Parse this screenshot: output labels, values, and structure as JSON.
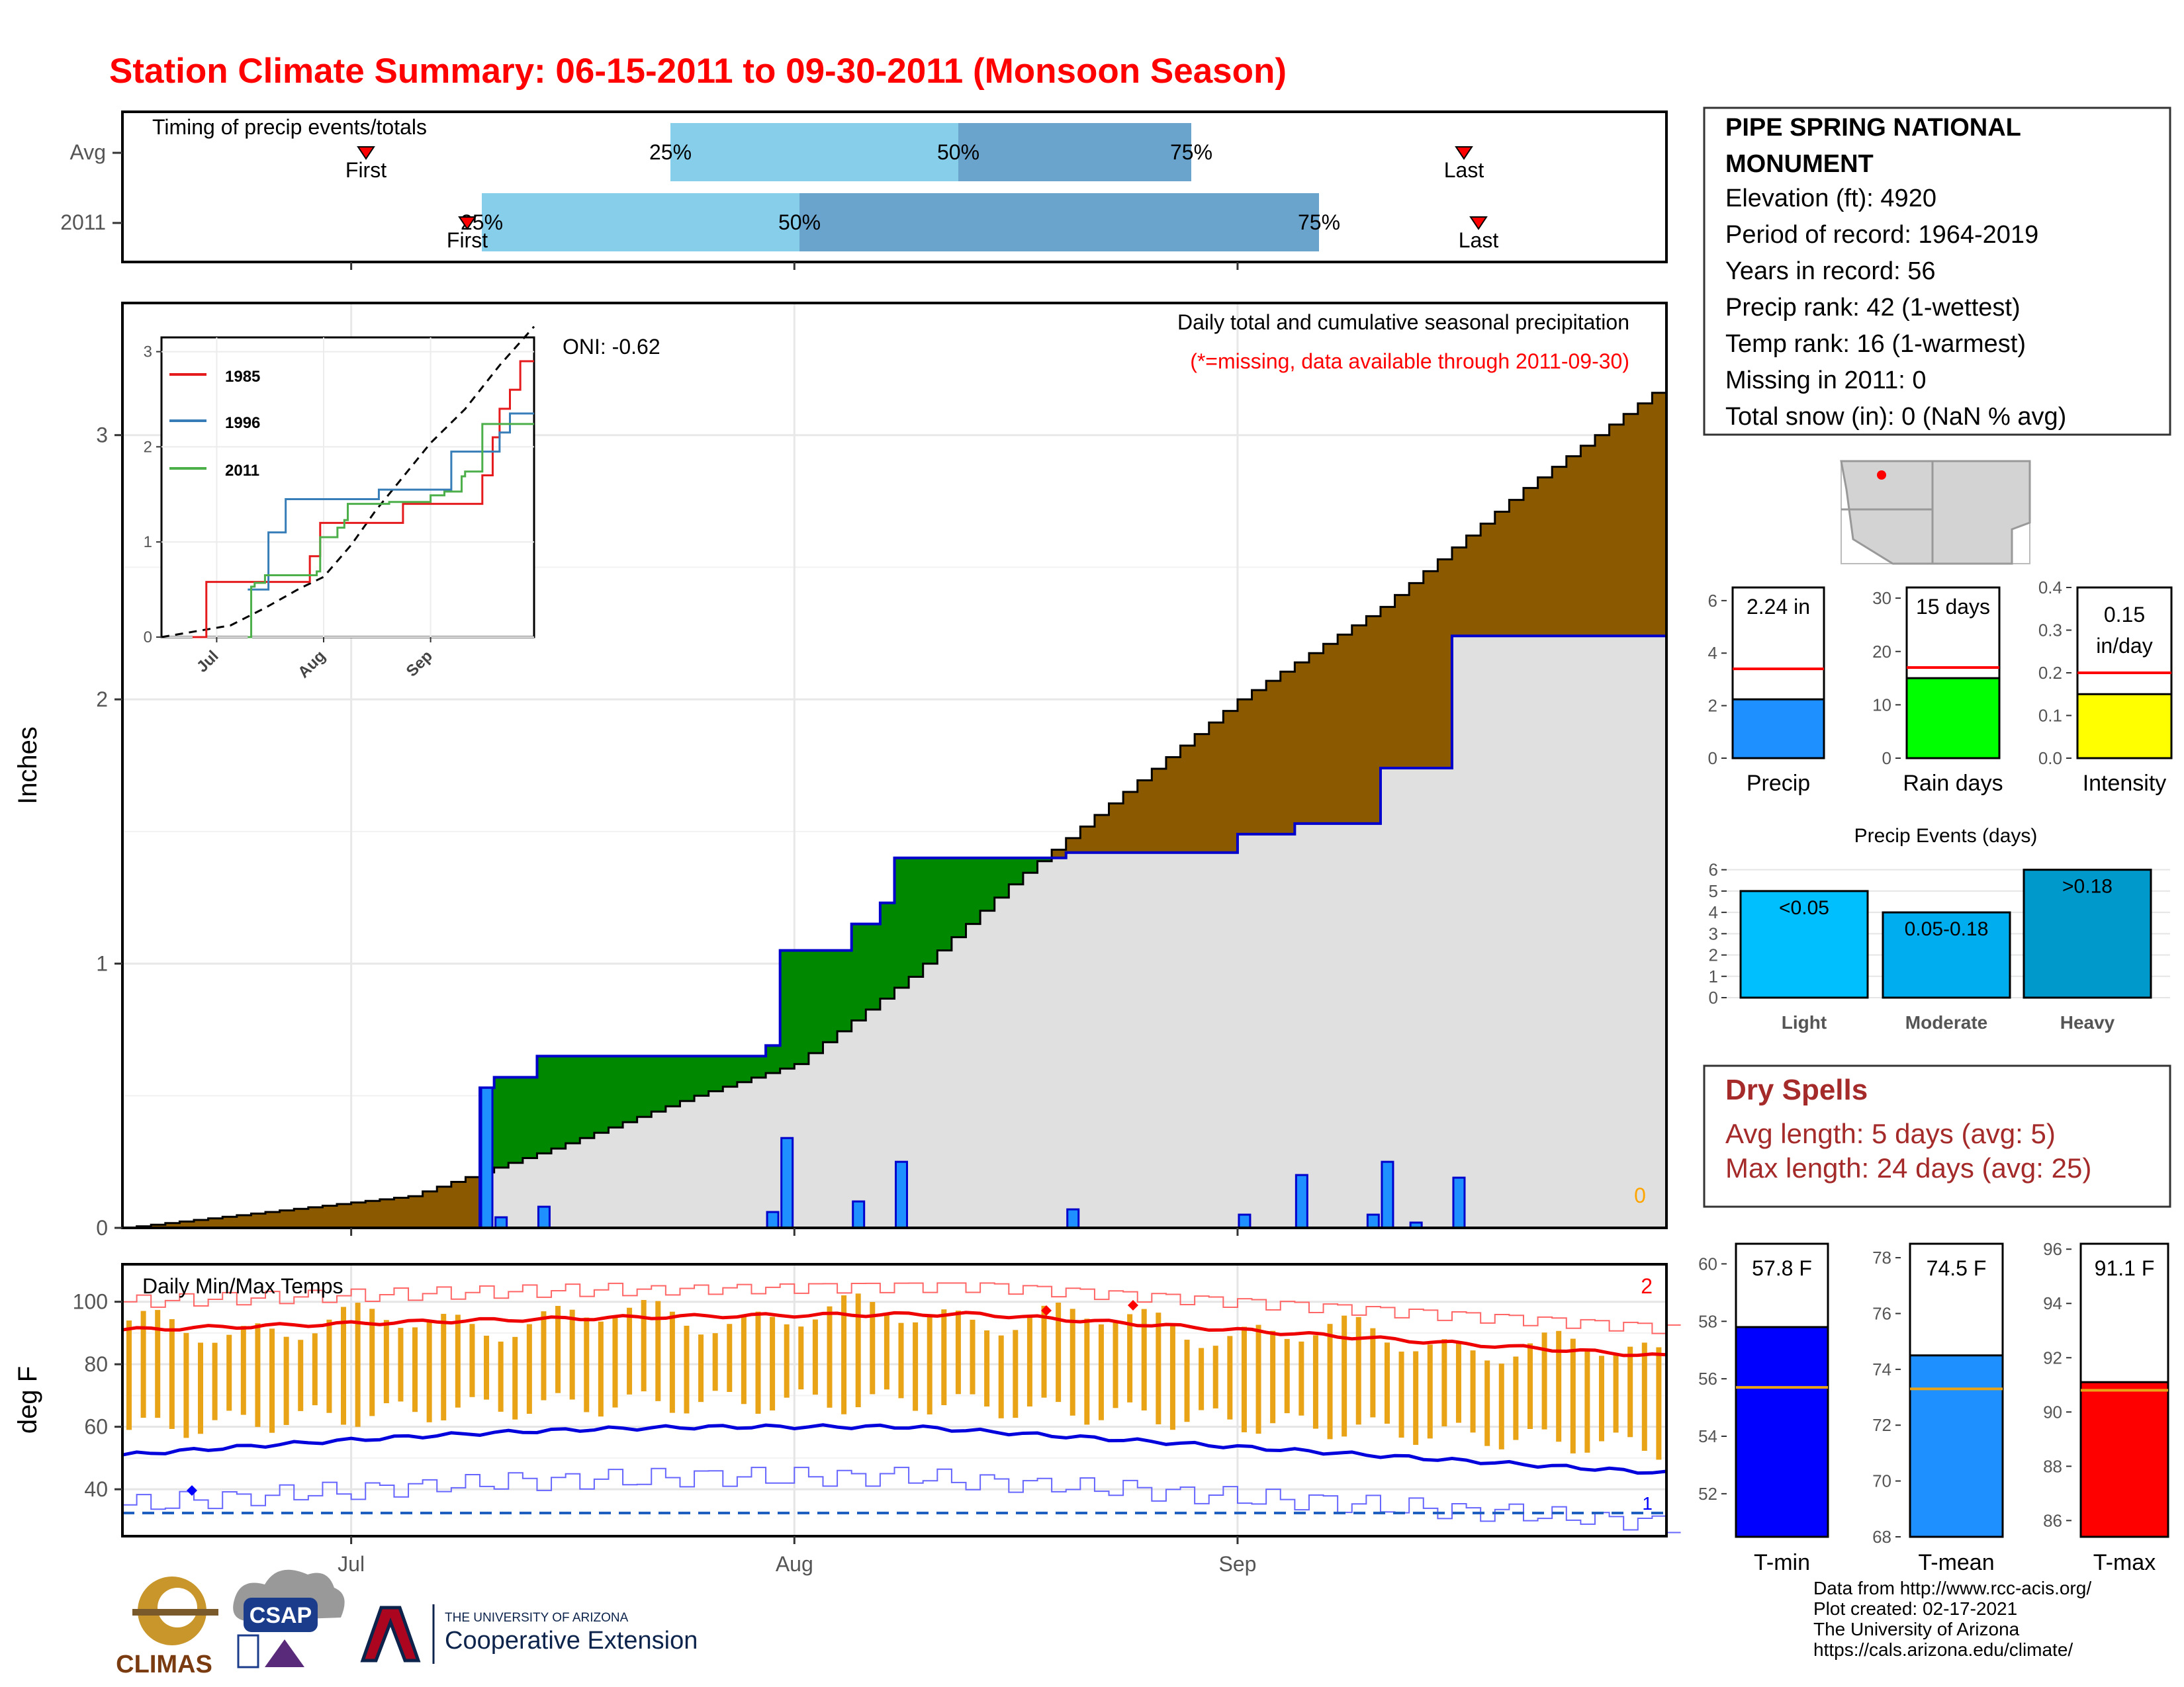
{
  "title": "Station Climate Summary: 06-15-2011 to 09-30-2011 (Monsoon Season)",
  "colors": {
    "title": "#ff0000",
    "brown": "#8b5a00",
    "green": "#008800",
    "grey_fill": "#e0e0e0",
    "avg_line": "#0000cc",
    "bar_blue": "#1e90ff",
    "gold": "#e8a317",
    "light_blue": "#87ceeb",
    "mid_blue": "#6aa3cc",
    "dry_red": "#a52a2a",
    "missing_orange": "#ffa500"
  },
  "timing": {
    "title": "Timing of precip events/totals",
    "rows": [
      {
        "label": "Avg",
        "first": "First",
        "last": "Last",
        "p25": "25%",
        "p50": "50%",
        "p75": "75%"
      },
      {
        "label": "2011",
        "first": "First",
        "last": "Last",
        "p25": "25%",
        "p50": "50%",
        "p75": "75%"
      }
    ]
  },
  "station": {
    "name_line1": "PIPE SPRING NATIONAL",
    "name_line2": "MONUMENT",
    "lines": [
      "Elevation (ft): 4920",
      "Period of record: 1964-2019",
      "Years in record: 56",
      "Precip rank: 42 (1-wettest)",
      "Temp rank: 16 (1-warmest)",
      "Missing in 2011: 0",
      "Total snow (in): 0 (NaN % avg)"
    ]
  },
  "main_plot": {
    "ylabel": "Inches",
    "caption": "Daily total and cumulative seasonal precipitation",
    "caption2": "(*=missing, data available through 2011-09-30)",
    "oni": "ONI: -0.62",
    "missing_count": "0",
    "yticks": [
      "0",
      "1",
      "2",
      "3"
    ],
    "xticks": [
      "Jul",
      "Aug",
      "Sep"
    ]
  },
  "inset": {
    "legend": [
      "1985",
      "1996",
      "2011"
    ],
    "legend_colors": [
      "#e41a1c",
      "#377eb8",
      "#4daf4a"
    ],
    "yticks": [
      "0",
      "1",
      "2",
      "3"
    ],
    "xticks": [
      "Jul",
      "Aug",
      "Sep"
    ]
  },
  "summary_bars": {
    "precip": {
      "label": "Precip",
      "value_label": "2.24 in",
      "value": 2.24,
      "avg": 3.4,
      "ymax": 6.5,
      "yticks": [
        "0",
        "2",
        "4",
        "6"
      ],
      "color": "#1e90ff"
    },
    "raindays": {
      "label": "Rain days",
      "value_label": "15 days",
      "value": 15,
      "avg": 17,
      "ymax": 32,
      "yticks": [
        "0",
        "10",
        "20",
        "30"
      ],
      "color": "#00ff00"
    },
    "intensity": {
      "label": "Intensity",
      "value_label": "0.15",
      "value_label2": "in/day",
      "value": 0.15,
      "avg": 0.2,
      "ymax": 0.4,
      "yticks": [
        "0.0",
        "0.1",
        "0.2",
        "0.3",
        "0.4"
      ],
      "color": "#ffff00"
    }
  },
  "precip_events": {
    "title": "Precip Events (days)",
    "categories": [
      "Light",
      "Moderate",
      "Heavy"
    ],
    "labels": [
      "<0.05",
      "0.05-0.18",
      ">0.18"
    ],
    "values": [
      5,
      4,
      6
    ],
    "yticks": [
      "0",
      "1",
      "2",
      "3",
      "4",
      "5",
      "6"
    ],
    "colors": [
      "#00bfff",
      "#00aef0",
      "#0099cc"
    ]
  },
  "dry_spells": {
    "title": "Dry Spells",
    "line1": "Avg length: 5 days (avg: 5)",
    "line2": "Max length: 24 days (avg: 25)"
  },
  "temps": {
    "title": "Daily Min/Max Temps",
    "ylabel": "deg F",
    "yticks": [
      "40",
      "60",
      "80",
      "100"
    ],
    "xticks": [
      "Jul",
      "Aug",
      "Sep"
    ],
    "record_high_count": "2",
    "record_low_count": "1"
  },
  "temp_bars": {
    "tmin": {
      "label": "T-min",
      "value_label": "57.8 F",
      "value": 57.8,
      "avg": 55.7,
      "ymin": 50.5,
      "ymax": 60.7,
      "yticks": [
        "52",
        "54",
        "56",
        "58",
        "60"
      ],
      "color": "#0000ff"
    },
    "tmean": {
      "label": "T-mean",
      "value_label": "74.5 F",
      "value": 74.5,
      "avg": 73.3,
      "ymin": 68,
      "ymax": 78.5,
      "yticks": [
        "68",
        "70",
        "72",
        "74",
        "76",
        "78"
      ],
      "color": "#1e90ff"
    },
    "tmax": {
      "label": "T-max",
      "value_label": "91.1 F",
      "value": 91.1,
      "avg": 90.8,
      "ymin": 85.4,
      "ymax": 96.2,
      "yticks": [
        "86",
        "88",
        "90",
        "92",
        "94",
        "96"
      ],
      "color": "#ff0000"
    }
  },
  "footer": {
    "lines": [
      "Data from http://www.rcc-acis.org/",
      "Plot created: 02-17-2021",
      "The University of Arizona",
      "https://cals.arizona.edu/climate/"
    ],
    "logo_climas": "CLIMAS",
    "logo_csap": "CSAP",
    "logo_ua_line1": "THE UNIVERSITY OF ARIZONA",
    "logo_ua_line2": "Cooperative Extension"
  },
  "chart_data": [
    {
      "type": "line",
      "title": "Daily total and cumulative seasonal precipitation",
      "ylabel": "Inches",
      "ylim": [
        0,
        3.5
      ],
      "x_range": [
        "2011-06-15",
        "2011-09-30"
      ],
      "series": [
        {
          "name": "2011",
          "points": [
            [
              "2011-07-10",
              0.53
            ],
            [
              "2011-07-11",
              0.57
            ],
            [
              "2011-07-14",
              0.65
            ],
            [
              "2011-07-30",
              0.69
            ],
            [
              "2011-07-31",
              1.05
            ],
            [
              "2011-08-05",
              1.15
            ],
            [
              "2011-08-07",
              1.23
            ],
            [
              "2011-08-08",
              1.4
            ],
            [
              "2011-08-20",
              1.42
            ],
            [
              "2011-09-01",
              1.49
            ],
            [
              "2011-09-05",
              1.53
            ],
            [
              "2011-09-11",
              1.69
            ],
            [
              "2011-09-11",
              1.74
            ],
            [
              "2011-09-16",
              2.24
            ],
            [
              "2011-09-30",
              2.24
            ]
          ]
        }
      ],
      "daily_totals": [
        [
          "2011-07-10",
          0.53
        ],
        [
          "2011-07-11",
          0.04
        ],
        [
          "2011-07-14",
          0.08
        ],
        [
          "2011-07-30",
          0.06
        ],
        [
          "2011-07-31",
          0.34
        ],
        [
          "2011-08-05",
          0.1
        ],
        [
          "2011-08-08",
          0.25
        ],
        [
          "2011-08-20",
          0.07
        ],
        [
          "2011-09-01",
          0.05
        ],
        [
          "2011-09-05",
          0.2
        ],
        [
          "2011-09-10",
          0.05
        ],
        [
          "2011-09-11",
          0.25
        ],
        [
          "2011-09-13",
          0.02
        ],
        [
          "2011-09-16",
          0.19
        ]
      ]
    },
    {
      "type": "bar",
      "title": "Precip Events (days)",
      "categories": [
        "Light",
        "Moderate",
        "Heavy"
      ],
      "values": [
        5,
        4,
        6
      ],
      "ylim": [
        0,
        6.5
      ]
    },
    {
      "type": "bar",
      "categories": [
        "Precip",
        "Rain days",
        "Intensity"
      ],
      "values": [
        2.24,
        15,
        0.15
      ],
      "averages": [
        3.4,
        17,
        0.2
      ]
    },
    {
      "type": "bar",
      "categories": [
        "T-min",
        "T-mean",
        "T-max"
      ],
      "values": [
        57.8,
        74.5,
        91.1
      ],
      "averages": [
        55.7,
        73.3,
        90.8
      ]
    }
  ]
}
